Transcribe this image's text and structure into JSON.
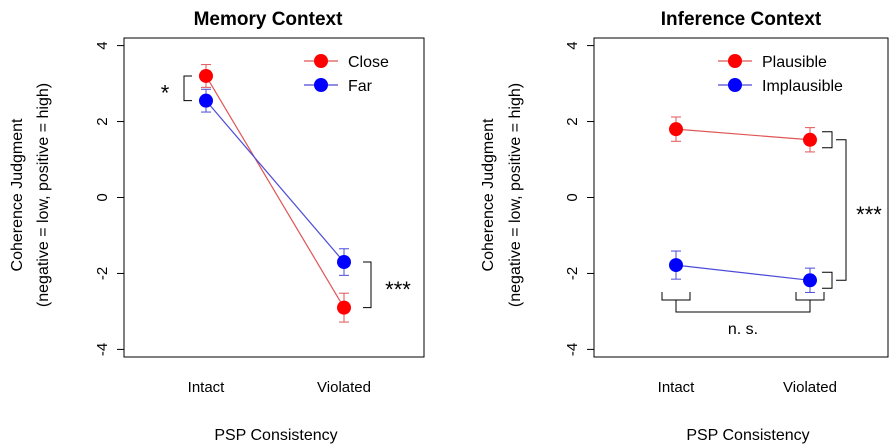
{
  "chart_data": [
    {
      "type": "line",
      "title": "Memory Context",
      "xlabel": "PSP Consistency",
      "ylabel": "Coherence Judgment",
      "ylabel_sub": "(negative = low, positive = high)",
      "categories": [
        "Intact",
        "Violated"
      ],
      "ylim": [
        -4.2,
        4.2
      ],
      "yticks": [
        "-4",
        "-2",
        "0",
        "2",
        "4"
      ],
      "legend_position": "top-right",
      "series": [
        {
          "name": "Close",
          "color": "#ff0000",
          "line_color": "#e05555",
          "values": [
            3.2,
            -2.9
          ],
          "err": [
            0.3,
            0.38
          ]
        },
        {
          "name": "Far",
          "color": "#0000ff",
          "line_color": "#4b4bd8",
          "values": [
            2.55,
            -1.7
          ],
          "err": [
            0.3,
            0.35
          ]
        }
      ],
      "annotations": {
        "intact_sig": "*",
        "violated_sig": "***"
      }
    },
    {
      "type": "line",
      "title": "Inference Context",
      "xlabel": "PSP Consistency",
      "ylabel": "Coherence Judgment",
      "ylabel_sub": "(negative = low, positive = high)",
      "categories": [
        "Intact",
        "Violated"
      ],
      "ylim": [
        -4.2,
        4.2
      ],
      "yticks": [
        "-4",
        "-2",
        "0",
        "2",
        "4"
      ],
      "legend_position": "top-right",
      "series": [
        {
          "name": "Plausible",
          "color": "#ff0000",
          "line_color": "#e05555",
          "values": [
            1.8,
            1.52
          ],
          "err": [
            0.32,
            0.32
          ]
        },
        {
          "name": "Implausible",
          "color": "#0000ff",
          "line_color": "#4b4bd8",
          "values": [
            -1.78,
            -2.18
          ],
          "err": [
            0.37,
            0.32
          ]
        }
      ],
      "annotations": {
        "violated_sig": "***",
        "consistency_sig": "n. s."
      }
    }
  ]
}
